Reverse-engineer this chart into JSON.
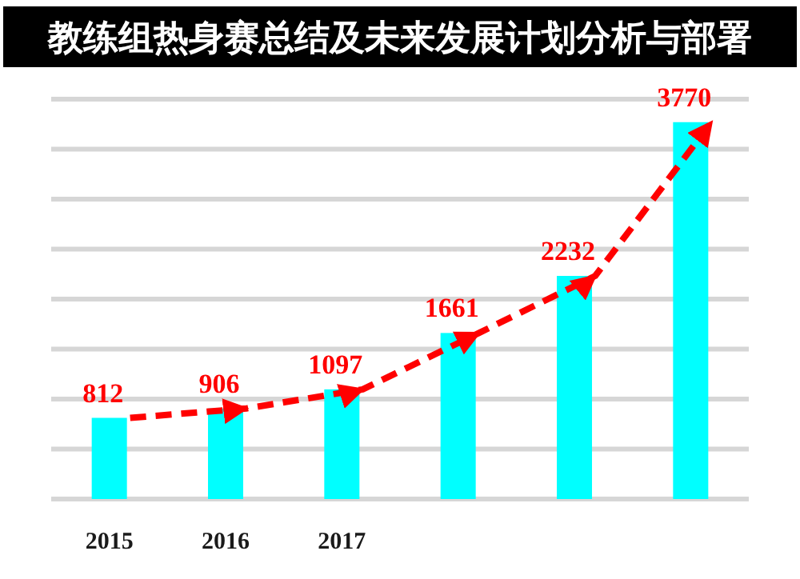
{
  "chart_data": {
    "type": "bar",
    "title": "教练组热身赛总结及未来发展计划分析与部署",
    "categories": [
      "2015",
      "2016",
      "2017",
      null,
      null,
      null
    ],
    "ylim": [
      0,
      4000
    ],
    "yticks": [
      {
        "value": 0,
        "label": null
      },
      {
        "value": 500,
        "label": null
      },
      {
        "value": 1000,
        "label": null
      },
      {
        "value": 1500,
        "label": null
      },
      {
        "value": 2000,
        "label": null
      },
      {
        "value": 2500,
        "label": null
      },
      {
        "value": 3000,
        "label": null
      },
      {
        "value": 3500,
        "label": null
      },
      {
        "value": 4000,
        "label": null
      }
    ],
    "tick_labels": "x",
    "grid": "y",
    "series": [
      {
        "color": "#00ffff",
        "values": [
          812,
          906,
          1097,
          1661,
          2232,
          3770
        ],
        "value_labels": [
          "812",
          "906",
          "1097",
          "1661",
          "2232",
          "3770"
        ]
      },
      {
        "type": "line",
        "color": "#ff0000",
        "line_style": "dashed",
        "marker": "none",
        "values": [
          812,
          906,
          1097,
          1661,
          2232,
          3770
        ]
      }
    ]
  }
}
